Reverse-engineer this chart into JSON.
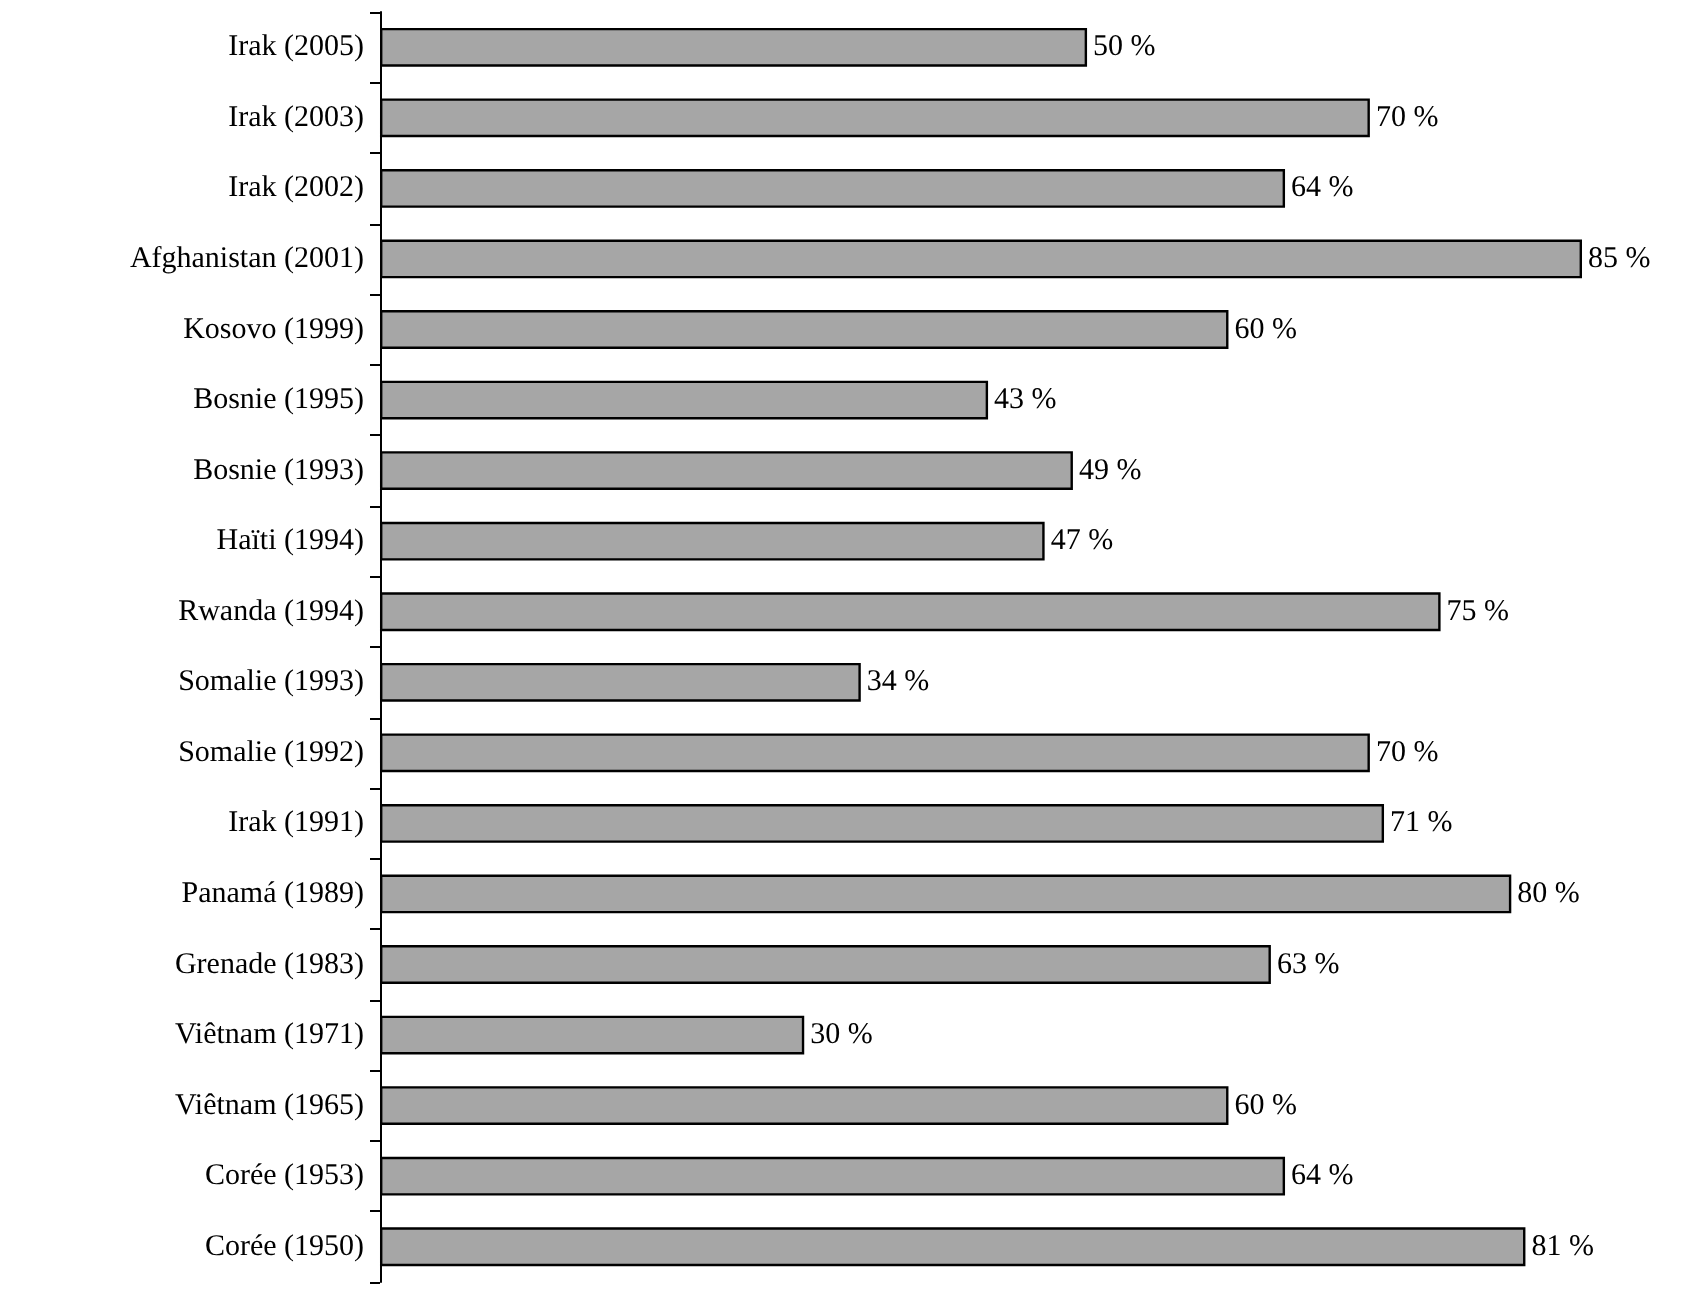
{
  "chart_data": {
    "type": "bar",
    "orientation": "horizontal",
    "color": "#a6a6a6",
    "categories": [
      "Irak (2005)",
      "Irak (2003)",
      "Irak (2002)",
      "Afghanistan (2001)",
      "Kosovo (1999)",
      "Bosnie (1995)",
      "Bosnie (1993)",
      "Haïti (1994)",
      "Rwanda (1994)",
      "Somalie (1993)",
      "Somalie (1992)",
      "Irak (1991)",
      "Panamá (1989)",
      "Grenade (1983)",
      "Viêtnam (1971)",
      "Viêtnam (1965)",
      "Corée (1953)",
      "Corée (1950)"
    ],
    "values": [
      50,
      70,
      64,
      85,
      60,
      43,
      49,
      47,
      75,
      34,
      70,
      71,
      80,
      63,
      30,
      60,
      64,
      81
    ],
    "value_labels": [
      "50 %",
      "70 %",
      "64 %",
      "85 %",
      "60 %",
      "43 %",
      "49 %",
      "47 %",
      "75 %",
      "34 %",
      "70 %",
      "71 %",
      "80 %",
      "63 %",
      "30 %",
      "60 %",
      "64 %",
      "81 %"
    ]
  }
}
